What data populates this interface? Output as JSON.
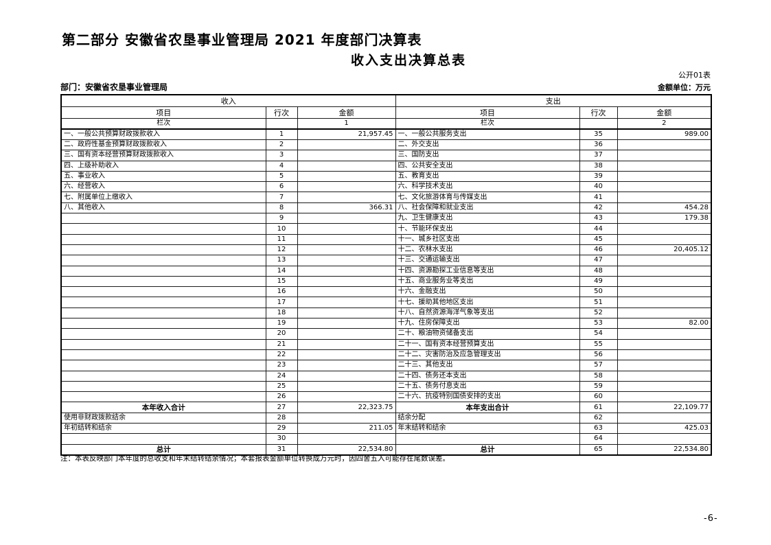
{
  "page": {
    "title": "第二部分 安徽省农垦事业管理局 2021 年度部门决算表",
    "subtitle": "收入支出决算总表",
    "form_code": "公开01表",
    "department_label": "部门：安徽省农垦事业管理局",
    "unit_label": "金额单位：万元",
    "note": "注：本表反映部门本年度的总收支和年末结转结余情况；本套报表金额单位转换成万元时，因四舍五入可能存在尾数误差。",
    "page_number": "-6-"
  },
  "table": {
    "income_header": "收入",
    "expense_header": "支出",
    "col_headers": {
      "item": "项目",
      "row_no": "行次",
      "amount": "金额"
    },
    "lanci_label": "栏次",
    "income_col_no": "1",
    "expense_col_no": "2",
    "rows": [
      {
        "i_item": "一、一般公共预算财政拨款收入",
        "i_no": "1",
        "i_amt": "21,957.45",
        "e_item": "一、一般公共服务支出",
        "e_no": "35",
        "e_amt": "989.00"
      },
      {
        "i_item": "二、政府性基金预算财政拨款收入",
        "i_no": "2",
        "i_amt": "",
        "e_item": "二、外交支出",
        "e_no": "36",
        "e_amt": ""
      },
      {
        "i_item": "三、国有资本经营预算财政拨款收入",
        "i_no": "3",
        "i_amt": "",
        "e_item": "三、国防支出",
        "e_no": "37",
        "e_amt": ""
      },
      {
        "i_item": "四、上级补助收入",
        "i_no": "4",
        "i_amt": "",
        "e_item": "四、公共安全支出",
        "e_no": "38",
        "e_amt": ""
      },
      {
        "i_item": "五、事业收入",
        "i_no": "5",
        "i_amt": "",
        "e_item": "五、教育支出",
        "e_no": "39",
        "e_amt": ""
      },
      {
        "i_item": "六、经营收入",
        "i_no": "6",
        "i_amt": "",
        "e_item": "六、科学技术支出",
        "e_no": "40",
        "e_amt": ""
      },
      {
        "i_item": "七、附属单位上缴收入",
        "i_no": "7",
        "i_amt": "",
        "e_item": "七、文化旅游体育与传媒支出",
        "e_no": "41",
        "e_amt": ""
      },
      {
        "i_item": "八、其他收入",
        "i_no": "8",
        "i_amt": "366.31",
        "e_item": "八、社会保障和就业支出",
        "e_no": "42",
        "e_amt": "454.28"
      },
      {
        "i_item": "",
        "i_no": "9",
        "i_amt": "",
        "e_item": "九、卫生健康支出",
        "e_no": "43",
        "e_amt": "179.38"
      },
      {
        "i_item": "",
        "i_no": "10",
        "i_amt": "",
        "e_item": "十、节能环保支出",
        "e_no": "44",
        "e_amt": ""
      },
      {
        "i_item": "",
        "i_no": "11",
        "i_amt": "",
        "e_item": "十一、城乡社区支出",
        "e_no": "45",
        "e_amt": ""
      },
      {
        "i_item": "",
        "i_no": "12",
        "i_amt": "",
        "e_item": "十二、农林水支出",
        "e_no": "46",
        "e_amt": "20,405.12"
      },
      {
        "i_item": "",
        "i_no": "13",
        "i_amt": "",
        "e_item": "十三、交通运输支出",
        "e_no": "47",
        "e_amt": ""
      },
      {
        "i_item": "",
        "i_no": "14",
        "i_amt": "",
        "e_item": "十四、资源勘探工业信息等支出",
        "e_no": "48",
        "e_amt": ""
      },
      {
        "i_item": "",
        "i_no": "15",
        "i_amt": "",
        "e_item": "十五、商业服务业等支出",
        "e_no": "49",
        "e_amt": ""
      },
      {
        "i_item": "",
        "i_no": "16",
        "i_amt": "",
        "e_item": "十六、金融支出",
        "e_no": "50",
        "e_amt": ""
      },
      {
        "i_item": "",
        "i_no": "17",
        "i_amt": "",
        "e_item": "十七、援助其他地区支出",
        "e_no": "51",
        "e_amt": ""
      },
      {
        "i_item": "",
        "i_no": "18",
        "i_amt": "",
        "e_item": "十八、自然资源海洋气象等支出",
        "e_no": "52",
        "e_amt": ""
      },
      {
        "i_item": "",
        "i_no": "19",
        "i_amt": "",
        "e_item": "十九、住房保障支出",
        "e_no": "53",
        "e_amt": "82.00"
      },
      {
        "i_item": "",
        "i_no": "20",
        "i_amt": "",
        "e_item": "二十、粮油物资储备支出",
        "e_no": "54",
        "e_amt": ""
      },
      {
        "i_item": "",
        "i_no": "21",
        "i_amt": "",
        "e_item": "二十一、国有资本经营预算支出",
        "e_no": "55",
        "e_amt": ""
      },
      {
        "i_item": "",
        "i_no": "22",
        "i_amt": "",
        "e_item": "二十二、灾害防治及应急管理支出",
        "e_no": "56",
        "e_amt": ""
      },
      {
        "i_item": "",
        "i_no": "23",
        "i_amt": "",
        "e_item": "二十三、其他支出",
        "e_no": "57",
        "e_amt": ""
      },
      {
        "i_item": "",
        "i_no": "24",
        "i_amt": "",
        "e_item": "二十四、债务还本支出",
        "e_no": "58",
        "e_amt": ""
      },
      {
        "i_item": "",
        "i_no": "25",
        "i_amt": "",
        "e_item": "二十五、债务付息支出",
        "e_no": "59",
        "e_amt": ""
      },
      {
        "i_item": "",
        "i_no": "26",
        "i_amt": "",
        "e_item": "二十六、抗疫特别国债安排的支出",
        "e_no": "60",
        "e_amt": ""
      },
      {
        "i_item": "本年收入合计",
        "i_total": true,
        "i_no": "27",
        "i_amt": "22,323.75",
        "e_item": "本年支出合计",
        "e_total": true,
        "e_no": "61",
        "e_amt": "22,109.77"
      },
      {
        "i_item": "使用非财政拨款结余",
        "i_no": "28",
        "i_amt": "",
        "e_item": "结余分配",
        "e_no": "62",
        "e_amt": ""
      },
      {
        "i_item": "年初结转和结余",
        "i_no": "29",
        "i_amt": "211.05",
        "e_item": "年末结转和结余",
        "e_no": "63",
        "e_amt": "425.03"
      },
      {
        "i_item": "",
        "i_no": "30",
        "i_amt": "",
        "e_item": "",
        "e_no": "64",
        "e_amt": ""
      },
      {
        "i_item": "总计",
        "i_total": true,
        "i_no": "31",
        "i_amt": "22,534.80",
        "e_item": "总计",
        "e_total": true,
        "e_no": "65",
        "e_amt": "22,534.80"
      }
    ]
  }
}
